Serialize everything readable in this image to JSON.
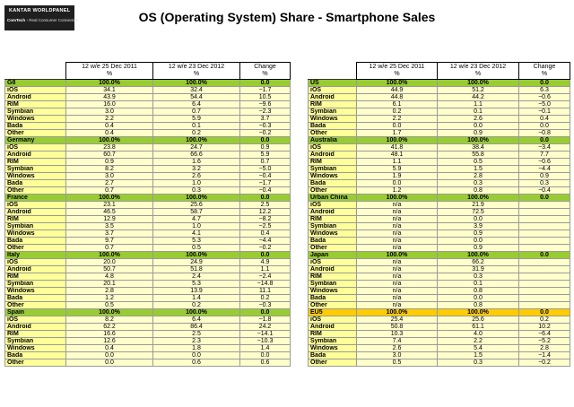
{
  "logo": {
    "line1": "KANTAR WORLDPANEL",
    "line2": "ComTech",
    "line3": "Real Consumer Connection"
  },
  "title": "OS (Operating System) Share - Smartphone Sales",
  "headers": {
    "col1": "12 w/e 25 Dec 2011",
    "col2": "12 w/e 23 Dec 2012",
    "col3": "Change",
    "unit": "%"
  },
  "left": [
    {
      "name": "G8",
      "total": [
        "100.0%",
        "100.0%",
        "0.0"
      ],
      "eu": false,
      "rows": [
        [
          "iOS",
          "34.1",
          "32.4",
          "-1.7"
        ],
        [
          "Android",
          "43.9",
          "54.4",
          "10.5"
        ],
        [
          "RIM",
          "16.0",
          "6.4",
          "-9.6"
        ],
        [
          "Symbian",
          "3.0",
          "0.7",
          "-2.3"
        ],
        [
          "Windows",
          "2.2",
          "5.9",
          "3.7"
        ],
        [
          "Bada",
          "0.4",
          "0.1",
          "-0.3"
        ],
        [
          "Other",
          "0.4",
          "0.2",
          "-0.2"
        ]
      ]
    },
    {
      "name": "Germany",
      "total": [
        "100.0%",
        "100.0%",
        "0.0"
      ],
      "eu": false,
      "rows": [
        [
          "iOS",
          "23.8",
          "24.7",
          "0.9"
        ],
        [
          "Android",
          "60.7",
          "66.6",
          "5.9"
        ],
        [
          "RIM",
          "0.9",
          "1.6",
          "0.7"
        ],
        [
          "Symbian",
          "8.2",
          "3.2",
          "-5.0"
        ],
        [
          "Windows",
          "3.0",
          "2.6",
          "-0.4"
        ],
        [
          "Bada",
          "2.7",
          "1.0",
          "-1.7"
        ],
        [
          "Other",
          "0.7",
          "0.3",
          "-0.4"
        ]
      ]
    },
    {
      "name": "France",
      "total": [
        "100.0%",
        "100.0%",
        "0.0"
      ],
      "eu": false,
      "rows": [
        [
          "iOS",
          "23.1",
          "25.6",
          "2.5"
        ],
        [
          "Android",
          "46.5",
          "58.7",
          "12.2"
        ],
        [
          "RIM",
          "12.9",
          "4.7",
          "-8.2"
        ],
        [
          "Symbian",
          "3.5",
          "1.0",
          "-2.5"
        ],
        [
          "Windows",
          "3.7",
          "4.1",
          "0.4"
        ],
        [
          "Bada",
          "9.7",
          "5.3",
          "-4.4"
        ],
        [
          "Other",
          "0.7",
          "0.5",
          "-0.2"
        ]
      ]
    },
    {
      "name": "Italy",
      "total": [
        "100.0%",
        "100.0%",
        "0.0"
      ],
      "eu": false,
      "rows": [
        [
          "iOS",
          "20.0",
          "24.9",
          "4.9"
        ],
        [
          "Android",
          "50.7",
          "51.8",
          "1.1"
        ],
        [
          "RIM",
          "4.8",
          "2.4",
          "-2.4"
        ],
        [
          "Symbian",
          "20.1",
          "5.3",
          "-14.8"
        ],
        [
          "Windows",
          "2.8",
          "13.9",
          "11.1"
        ],
        [
          "Bada",
          "1.2",
          "1.4",
          "0.2"
        ],
        [
          "Other",
          "0.5",
          "0.2",
          "-0.3"
        ]
      ]
    },
    {
      "name": "Spain",
      "total": [
        "100.0%",
        "100.0%",
        "0.0"
      ],
      "eu": false,
      "rows": [
        [
          "iOS",
          "8.2",
          "6.4",
          "-1.8"
        ],
        [
          "Android",
          "62.2",
          "86.4",
          "24.2"
        ],
        [
          "RIM",
          "16.6",
          "2.5",
          "-14.1"
        ],
        [
          "Symbian",
          "12.6",
          "2.3",
          "-10.3"
        ],
        [
          "Windows",
          "0.4",
          "1.8",
          "1.4"
        ],
        [
          "Bada",
          "0.0",
          "0.0",
          "0.0"
        ],
        [
          "Other",
          "0.0",
          "0.6",
          "0.6"
        ]
      ]
    }
  ],
  "right": [
    {
      "name": "US",
      "total": [
        "100.0%",
        "100.0%",
        "0.0"
      ],
      "eu": false,
      "rows": [
        [
          "iOS",
          "44.9",
          "51.2",
          "6.3"
        ],
        [
          "Android",
          "44.8",
          "44.2",
          "-0.6"
        ],
        [
          "RIM",
          "6.1",
          "1.1",
          "-5.0"
        ],
        [
          "Symbian",
          "0.2",
          "0.1",
          "-0.1"
        ],
        [
          "Windows",
          "2.2",
          "2.6",
          "0.4"
        ],
        [
          "Bada",
          "0.0",
          "0.0",
          "0.0"
        ],
        [
          "Other",
          "1.7",
          "0.9",
          "-0.8"
        ]
      ]
    },
    {
      "name": "Australia",
      "total": [
        "100.0%",
        "100.0%",
        "0.0"
      ],
      "eu": false,
      "rows": [
        [
          "iOS",
          "41.8",
          "38.4",
          "-3.4"
        ],
        [
          "Android",
          "48.1",
          "55.8",
          "7.7"
        ],
        [
          "RIM",
          "1.1",
          "0.5",
          "-0.6"
        ],
        [
          "Symbian",
          "5.9",
          "1.5",
          "-4.4"
        ],
        [
          "Windows",
          "1.9",
          "2.8",
          "0.9"
        ],
        [
          "Bada",
          "0.0",
          "0.3",
          "0.3"
        ],
        [
          "Other",
          "1.2",
          "0.8",
          "-0.4"
        ]
      ]
    },
    {
      "name": "Urban China",
      "total": [
        "100.0%",
        "100.0%",
        "0.0"
      ],
      "eu": false,
      "rows": [
        [
          "iOS",
          "n/a",
          "21.9",
          ""
        ],
        [
          "Android",
          "n/a",
          "72.5",
          ""
        ],
        [
          "RIM",
          "n/a",
          "0.0",
          ""
        ],
        [
          "Symbian",
          "n/a",
          "3.9",
          ""
        ],
        [
          "Windows",
          "n/a",
          "0.9",
          ""
        ],
        [
          "Bada",
          "n/a",
          "0.0",
          ""
        ],
        [
          "Other",
          "n/a",
          "0.9",
          ""
        ]
      ]
    },
    {
      "name": "Japan",
      "total": [
        "100.0%",
        "100.0%",
        "0.0"
      ],
      "eu": false,
      "rows": [
        [
          "iOS",
          "n/a",
          "66.2",
          ""
        ],
        [
          "Android",
          "n/a",
          "31.9",
          ""
        ],
        [
          "RIM",
          "n/a",
          "0.3",
          ""
        ],
        [
          "Symbian",
          "n/a",
          "0.1",
          ""
        ],
        [
          "Windows",
          "n/a",
          "0.8",
          ""
        ],
        [
          "Bada",
          "n/a",
          "0.0",
          ""
        ],
        [
          "Other",
          "n/a",
          "0.8",
          ""
        ]
      ]
    },
    {
      "name": "EU5",
      "total": [
        "100.0%",
        "100.0%",
        "0.0"
      ],
      "eu": true,
      "rows": [
        [
          "iOS",
          "25.4",
          "25.6",
          "0.2"
        ],
        [
          "Android",
          "50.8",
          "61.1",
          "10.2"
        ],
        [
          "RIM",
          "10.3",
          "4.0",
          "-6.4"
        ],
        [
          "Symbian",
          "7.4",
          "2.2",
          "-5.2"
        ],
        [
          "Windows",
          "2.6",
          "5.4",
          "2.8"
        ],
        [
          "Bada",
          "3.0",
          "1.5",
          "-1.4"
        ],
        [
          "Other",
          "0.5",
          "0.3",
          "-0.2"
        ]
      ]
    }
  ],
  "colors": {
    "region_header": "#99cc33",
    "eu_header": "#ffcc00",
    "label_bg": "#ffff99",
    "value_bg": "#ffffcc"
  }
}
